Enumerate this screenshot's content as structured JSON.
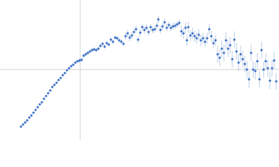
{
  "chart_data": {
    "type": "scatter",
    "x": [
      -85,
      -82,
      -79,
      -76,
      -73,
      -70,
      -67,
      -64,
      -61,
      -58,
      -55,
      -52,
      -49,
      -46,
      -43,
      -40,
      -37,
      -34,
      -31,
      -28,
      -25,
      -22,
      -19,
      -16,
      -13,
      -10,
      -7,
      -4,
      -1,
      2,
      5,
      8,
      11,
      14,
      17,
      20,
      23,
      26,
      29,
      32,
      35,
      38,
      41,
      44,
      47,
      50,
      53,
      56,
      59,
      62,
      65,
      68,
      71,
      74,
      77,
      80,
      83,
      86,
      89,
      92,
      95,
      98,
      101,
      104,
      107,
      110,
      112,
      115,
      118,
      121,
      124,
      127,
      130,
      133,
      136,
      139,
      142,
      145,
      148,
      151,
      153,
      155,
      158,
      161,
      164,
      167,
      170,
      173,
      176,
      179,
      182,
      185,
      188,
      191,
      194,
      197,
      200,
      203,
      206,
      209,
      212,
      215,
      218,
      221,
      224,
      227,
      230,
      233,
      236,
      239,
      242,
      245,
      248,
      251,
      254,
      257,
      260,
      263,
      266,
      269,
      272,
      275,
      278,
      281
    ],
    "y": [
      -82,
      -79,
      -76,
      -73,
      -69,
      -66,
      -62,
      -58,
      -54,
      -50,
      -47,
      -42,
      -38,
      -34,
      -30,
      -25,
      -22,
      -19,
      -15,
      -12,
      -8,
      -5,
      -1,
      2,
      5,
      7,
      10,
      12,
      13,
      14,
      20,
      22,
      24,
      26,
      28,
      29,
      28,
      30,
      34,
      37,
      33,
      38,
      36,
      43,
      40,
      46,
      45,
      42,
      40,
      37,
      48,
      52,
      46,
      49,
      54,
      58,
      43,
      53,
      61,
      57,
      60,
      54,
      61,
      57,
      58,
      63,
      72,
      57,
      62,
      68,
      60,
      64,
      60,
      62,
      63,
      65,
      67,
      55,
      52,
      60,
      42,
      61,
      49,
      52,
      48,
      45,
      50,
      42,
      45,
      40,
      45,
      58,
      48,
      38,
      42,
      22,
      17,
      30,
      24,
      42,
      30,
      35,
      15,
      43,
      26,
      10,
      22,
      15,
      8,
      0,
      -14,
      24,
      0,
      -2,
      12,
      -14,
      28,
      0,
      12,
      2,
      -16,
      2,
      13,
      -17
    ],
    "y_err": [
      1,
      1,
      1,
      1,
      1,
      1,
      1,
      1,
      1,
      1,
      1,
      1,
      1,
      1,
      1,
      1,
      1,
      1,
      1,
      1,
      1,
      1,
      1,
      1,
      1,
      1,
      1,
      1,
      3,
      3,
      3,
      3,
      3,
      3,
      3,
      3,
      3,
      3,
      3,
      3,
      3,
      3,
      3,
      3,
      3,
      3,
      3,
      3,
      3,
      3,
      5,
      5,
      5,
      5,
      5,
      5,
      5,
      5,
      5,
      5,
      5,
      5,
      5,
      5,
      5,
      5,
      5,
      5,
      5,
      5,
      5,
      5,
      5,
      5,
      5,
      5,
      5,
      8,
      8,
      8,
      8,
      8,
      8,
      8,
      8,
      8,
      8,
      8,
      8,
      8,
      8,
      8,
      8,
      8,
      8,
      12,
      12,
      12,
      12,
      12,
      12,
      12,
      12,
      12,
      12,
      12,
      12,
      12,
      12,
      12,
      12,
      12,
      12,
      12,
      12,
      12,
      12,
      12,
      12,
      12,
      12,
      12,
      12,
      12
    ],
    "color": "#3a6fc4",
    "error_color": "#a9bee2",
    "xlim": [
      -115,
      285
    ],
    "ylim": [
      -100,
      100
    ]
  }
}
